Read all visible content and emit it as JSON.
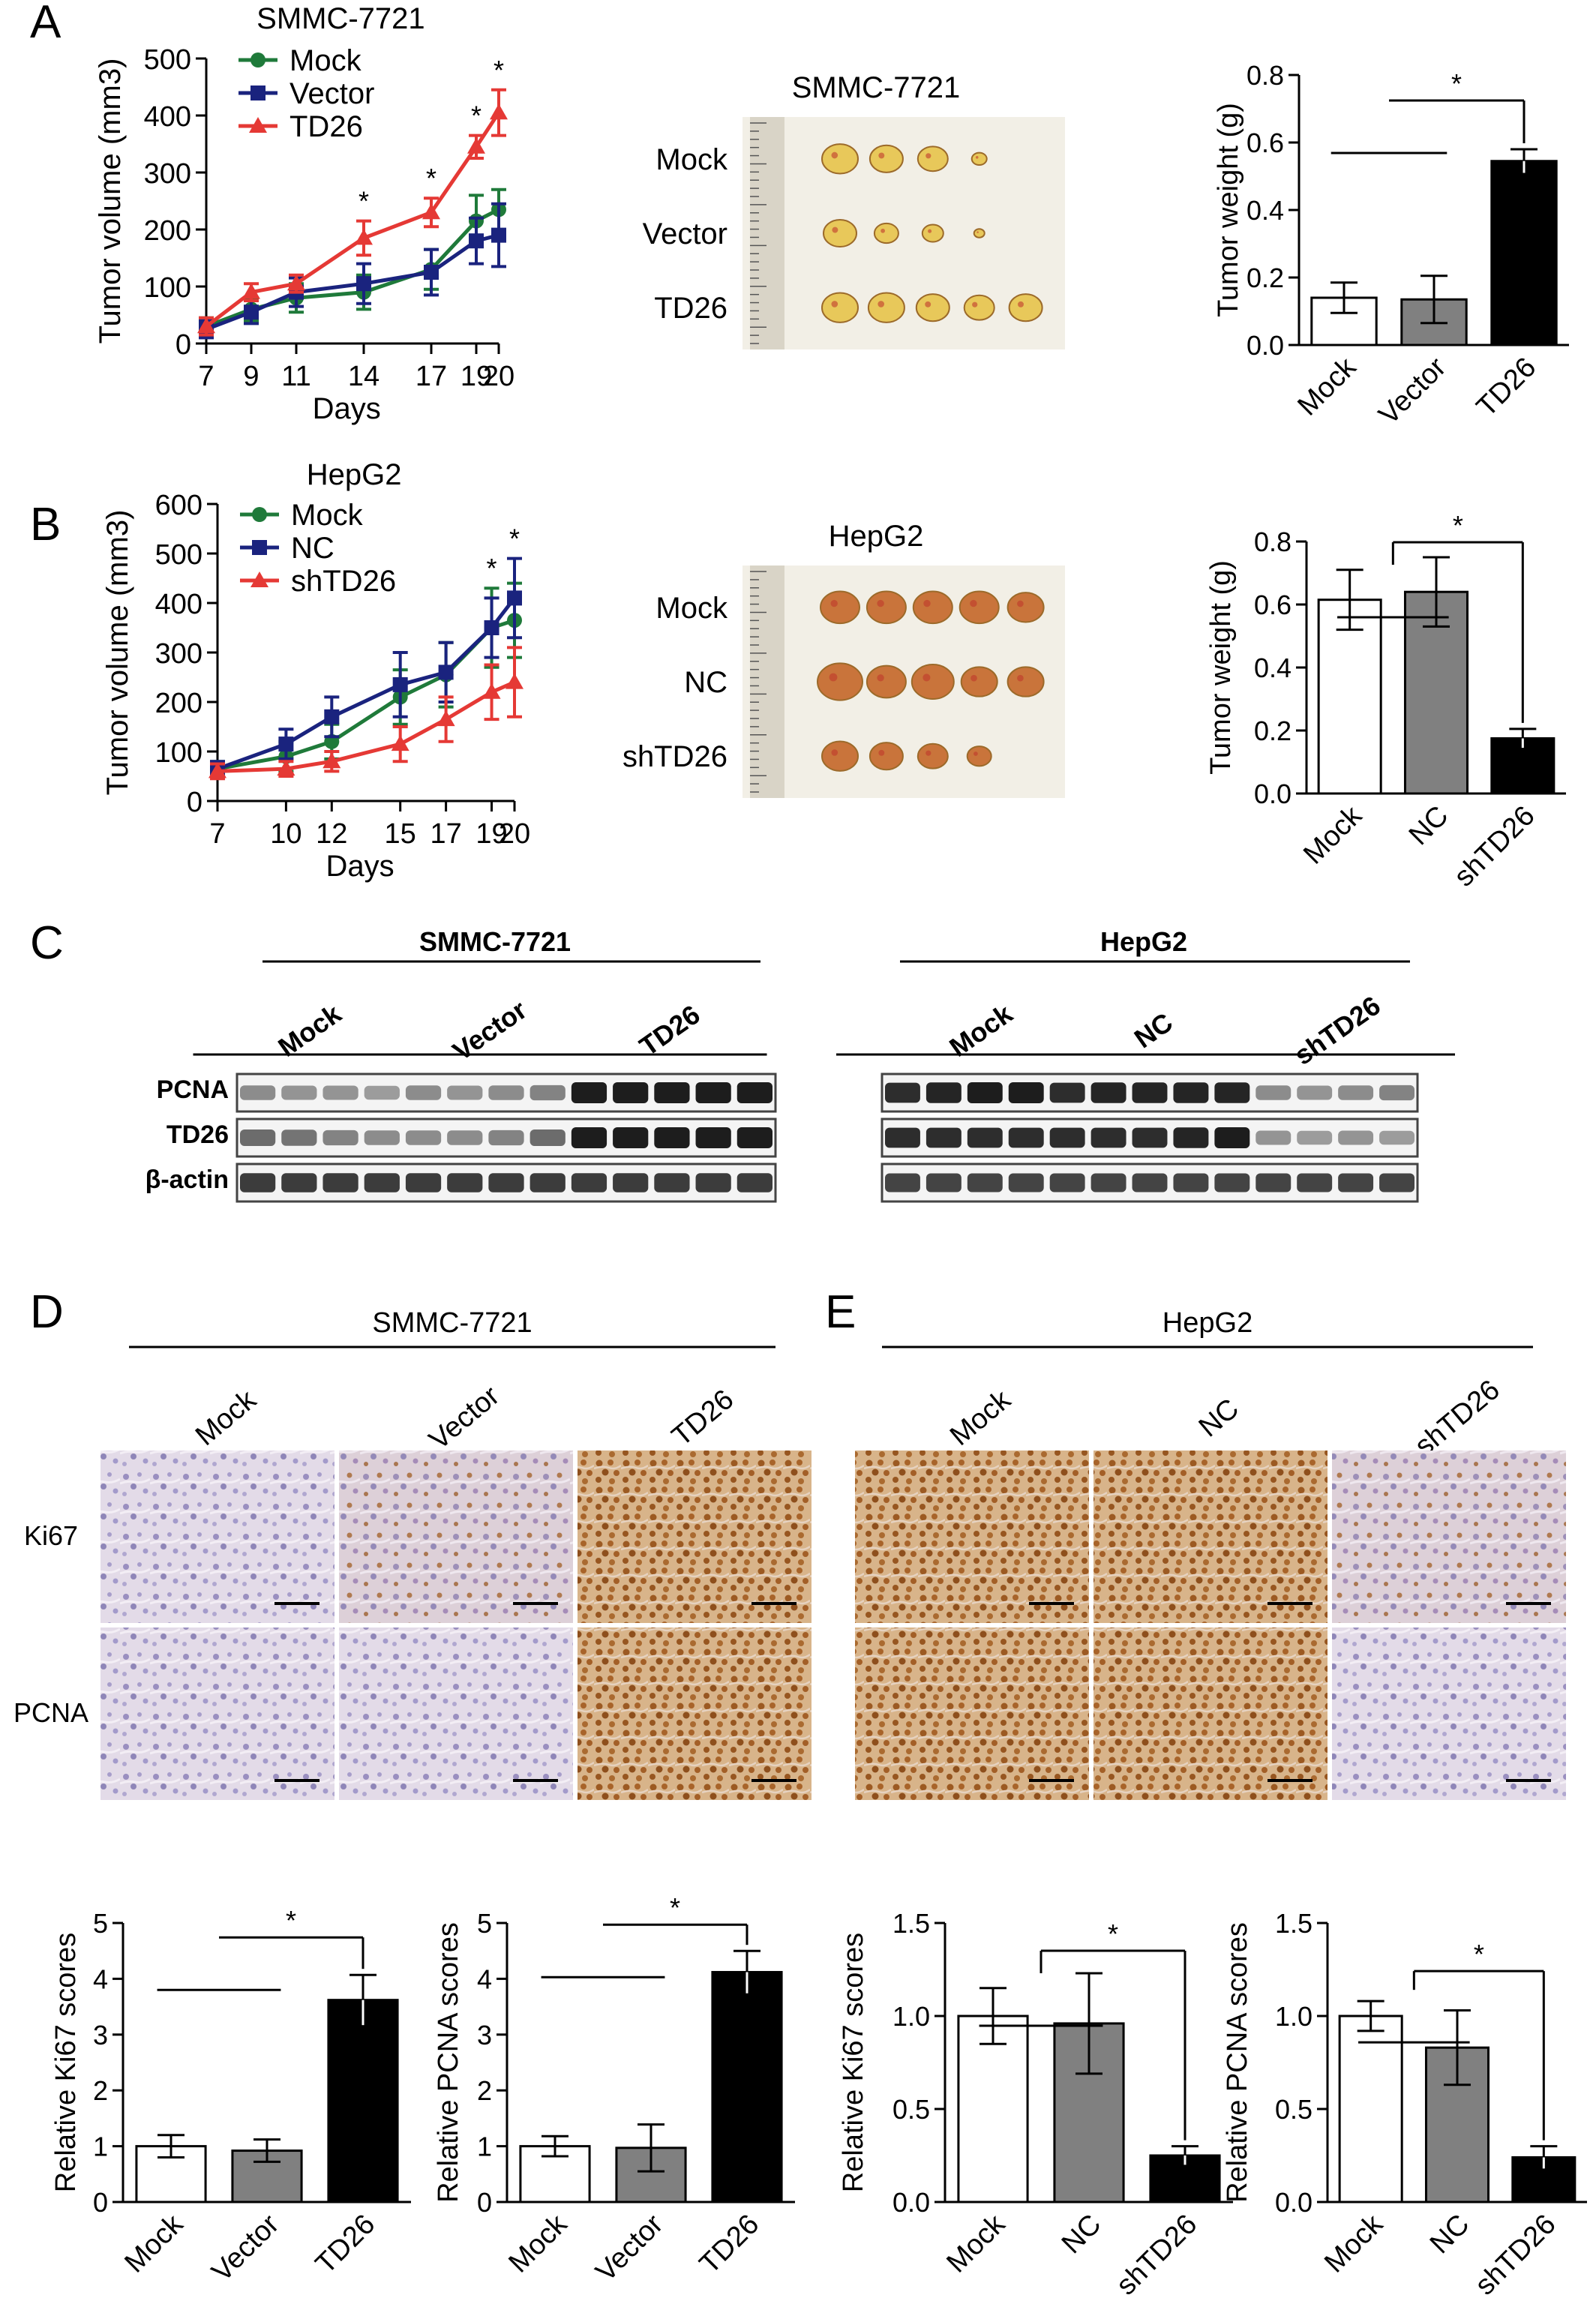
{
  "panels": {
    "A": {
      "letter": "A",
      "photo_title": "SMMC-7721",
      "photo_rows": [
        "Mock",
        "Vector",
        "TD26"
      ],
      "photo_counts": [
        4,
        4,
        5
      ]
    },
    "B": {
      "letter": "B",
      "photo_title": "HepG2",
      "photo_rows": [
        "Mock",
        "NC",
        "shTD26"
      ],
      "photo_counts": [
        5,
        5,
        4
      ]
    },
    "C": {
      "letter": "C",
      "groups": [
        {
          "cell_line": "SMMC-7721",
          "conditions": [
            "Mock",
            "Vector",
            "TD26"
          ]
        },
        {
          "cell_line": "HepG2",
          "conditions": [
            "Mock",
            "NC",
            "shTD26"
          ]
        }
      ],
      "row_labels": [
        "PCNA",
        "TD26",
        "β-actin"
      ]
    },
    "D": {
      "letter": "D",
      "cell_line": "SMMC-7721",
      "columns": [
        "Mock",
        "Vector",
        "TD26"
      ],
      "rows": [
        "Ki67",
        "PCNA"
      ]
    },
    "E": {
      "letter": "E",
      "cell_line": "HepG2",
      "columns": [
        "Mock",
        "NC",
        "shTD26"
      ],
      "rows": [
        "Ki67",
        "PCNA"
      ]
    }
  },
  "significance_marker": "*",
  "colors": {
    "mock": "#1f7a3a",
    "vector": "#1a237e",
    "td26": "#e53935",
    "bar_white": "#ffffff",
    "bar_gray": "#808080",
    "bar_black": "#000000"
  },
  "chart_data": [
    {
      "id": "A-volume",
      "type": "line",
      "title": "SMMC-7721",
      "xlabel": "Days",
      "ylabel": "Tumor volume (mm3)",
      "x": [
        7,
        9,
        11,
        14,
        17,
        19,
        20
      ],
      "x_ticks": [
        7,
        9,
        11,
        14,
        17,
        19,
        20
      ],
      "ylim": [
        0,
        500
      ],
      "y_ticks": [
        0,
        100,
        200,
        300,
        400,
        500
      ],
      "legend": "top-left",
      "series": [
        {
          "name": "Mock",
          "marker": "circle",
          "color": "#1f7a3a",
          "values": [
            30,
            60,
            80,
            90,
            130,
            215,
            235
          ],
          "errors": [
            15,
            20,
            25,
            30,
            35,
            45,
            35
          ]
        },
        {
          "name": "Vector",
          "marker": "square",
          "color": "#1a237e",
          "values": [
            25,
            55,
            90,
            105,
            125,
            180,
            190
          ],
          "errors": [
            15,
            20,
            25,
            35,
            40,
            40,
            55
          ]
        },
        {
          "name": "TD26",
          "marker": "triangle",
          "color": "#e53935",
          "values": [
            30,
            90,
            105,
            185,
            230,
            345,
            405
          ],
          "errors": [
            15,
            15,
            15,
            30,
            25,
            20,
            40
          ]
        }
      ],
      "significant_x": [
        14,
        17,
        19,
        20
      ]
    },
    {
      "id": "A-weight",
      "type": "bar",
      "ylabel": "Tumor weight (g)",
      "categories": [
        "Mock",
        "Vector",
        "TD26"
      ],
      "values": [
        0.14,
        0.135,
        0.545
      ],
      "errors": [
        0.045,
        0.07,
        0.035
      ],
      "fills": [
        "#ffffff",
        "#808080",
        "#000000"
      ],
      "ylim": [
        0,
        0.8
      ],
      "y_ticks": [
        "0.0",
        "0.2",
        "0.4",
        "0.6",
        "0.8"
      ],
      "comparison": {
        "from": [
          0,
          1
        ],
        "to": 2,
        "label": "*"
      }
    },
    {
      "id": "B-volume",
      "type": "line",
      "title": "HepG2",
      "xlabel": "Days",
      "ylabel": "Tumor volume (mm3)",
      "x": [
        7,
        10,
        12,
        15,
        17,
        19,
        20
      ],
      "x_ticks": [
        7,
        10,
        12,
        15,
        17,
        19,
        20
      ],
      "ylim": [
        0,
        600
      ],
      "y_ticks": [
        0,
        100,
        200,
        300,
        400,
        500,
        600
      ],
      "legend": "top-left",
      "series": [
        {
          "name": "Mock",
          "marker": "circle",
          "color": "#1f7a3a",
          "values": [
            65,
            90,
            120,
            210,
            255,
            350,
            365
          ],
          "errors": [
            15,
            30,
            35,
            55,
            65,
            80,
            75
          ]
        },
        {
          "name": "NC",
          "marker": "square",
          "color": "#1a237e",
          "values": [
            65,
            115,
            170,
            235,
            260,
            350,
            410
          ],
          "errors": [
            15,
            30,
            40,
            65,
            60,
            60,
            80
          ]
        },
        {
          "name": "shTD26",
          "marker": "triangle",
          "color": "#e53935",
          "values": [
            60,
            65,
            80,
            115,
            165,
            220,
            240
          ],
          "errors": [
            15,
            15,
            20,
            35,
            45,
            55,
            70
          ]
        }
      ],
      "significant_x": [
        19,
        20
      ]
    },
    {
      "id": "B-weight",
      "type": "bar",
      "ylabel": "Tumor weight (g)",
      "categories": [
        "Mock",
        "NC",
        "shTD26"
      ],
      "values": [
        0.615,
        0.64,
        0.175
      ],
      "errors": [
        0.095,
        0.11,
        0.03
      ],
      "fills": [
        "#ffffff",
        "#808080",
        "#000000"
      ],
      "ylim": [
        0,
        0.8
      ],
      "y_ticks": [
        "0.0",
        "0.2",
        "0.4",
        "0.6",
        "0.8"
      ],
      "comparison": {
        "from": [
          0,
          1
        ],
        "to": 2,
        "label": "*"
      }
    },
    {
      "id": "D-ki67",
      "type": "bar",
      "ylabel": "Relative Ki67 scores",
      "categories": [
        "Mock",
        "Vector",
        "TD26"
      ],
      "values": [
        1.0,
        0.92,
        3.62
      ],
      "errors": [
        0.2,
        0.2,
        0.45
      ],
      "fills": [
        "#ffffff",
        "#808080",
        "#000000"
      ],
      "ylim": [
        0,
        5
      ],
      "y_ticks": [
        "0",
        "1",
        "2",
        "3",
        "4",
        "5"
      ],
      "comparison": {
        "from": [
          0,
          1
        ],
        "to": 2,
        "label": "*"
      }
    },
    {
      "id": "D-pcna",
      "type": "bar",
      "ylabel": "Relative PCNA scores",
      "categories": [
        "Mock",
        "Vector",
        "TD26"
      ],
      "values": [
        1.0,
        0.97,
        4.12
      ],
      "errors": [
        0.18,
        0.42,
        0.38
      ],
      "fills": [
        "#ffffff",
        "#808080",
        "#000000"
      ],
      "ylim": [
        0,
        5
      ],
      "y_ticks": [
        "0",
        "1",
        "2",
        "3",
        "4",
        "5"
      ],
      "comparison": {
        "from": [
          0,
          1
        ],
        "to": 2,
        "label": "*"
      }
    },
    {
      "id": "E-ki67",
      "type": "bar",
      "ylabel": "Relative Ki67 scores",
      "categories": [
        "Mock",
        "NC",
        "shTD26"
      ],
      "values": [
        1.0,
        0.96,
        0.25
      ],
      "errors": [
        0.15,
        0.27,
        0.05
      ],
      "fills": [
        "#ffffff",
        "#808080",
        "#000000"
      ],
      "ylim": [
        0,
        1.5
      ],
      "y_ticks": [
        "0.0",
        "0.5",
        "1.0",
        "1.5"
      ],
      "comparison": {
        "from": [
          0,
          1
        ],
        "to": 2,
        "label": "*"
      }
    },
    {
      "id": "E-pcna",
      "type": "bar",
      "ylabel": "Relative PCNA scores",
      "categories": [
        "Mock",
        "NC",
        "shTD26"
      ],
      "values": [
        1.0,
        0.83,
        0.24
      ],
      "errors": [
        0.08,
        0.2,
        0.06
      ],
      "fills": [
        "#ffffff",
        "#808080",
        "#000000"
      ],
      "ylim": [
        0,
        1.5
      ],
      "y_ticks": [
        "0.0",
        "0.5",
        "1.0",
        "1.5"
      ],
      "comparison": {
        "from": [
          0,
          1
        ],
        "to": 2,
        "label": "*"
      }
    }
  ]
}
